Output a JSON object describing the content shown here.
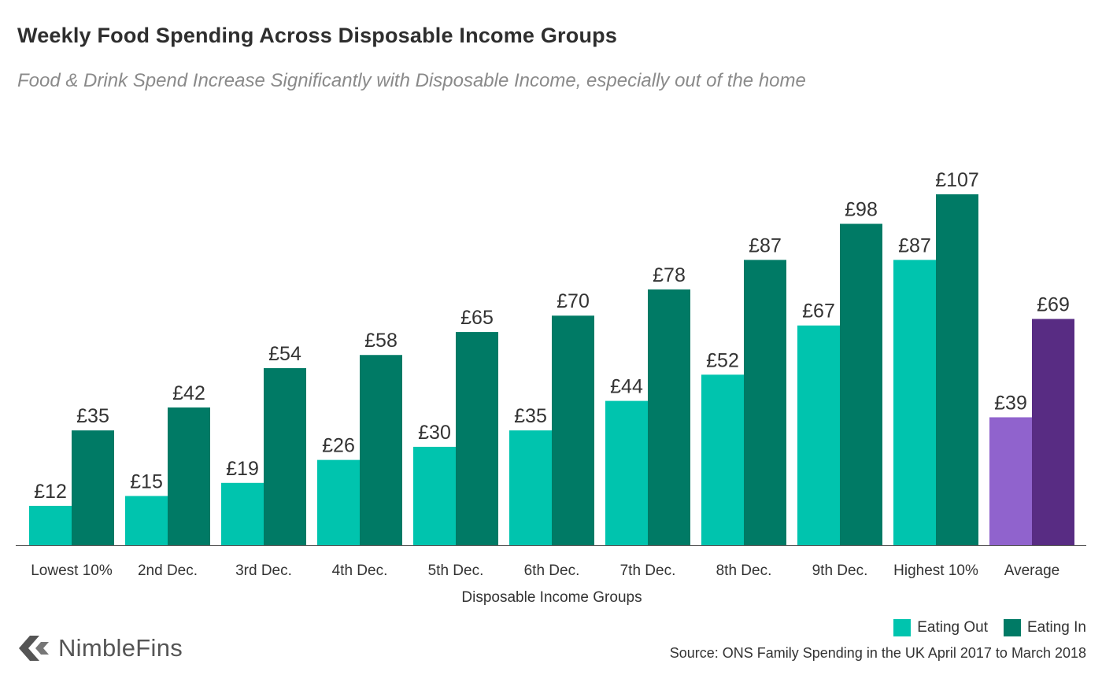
{
  "title": "Weekly Food Spending Across Disposable Income Groups",
  "subtitle": "Food & Drink Spend Increase Significantly with Disposable Income, especially out of the home",
  "source": "Source: ONS Family Spending in the UK April 2017 to March 2018",
  "brand": "NimbleFins",
  "logo_icon": "nimblefins-arrow-icon",
  "colors": {
    "eating_out": "#00c4ae",
    "eating_in": "#007a65",
    "average_out": "#9063cd",
    "average_in": "#582c83",
    "axis": "#555555"
  },
  "legend": [
    {
      "label": "Eating Out",
      "color": "#00c4ae"
    },
    {
      "label": "Eating In",
      "color": "#007a65"
    }
  ],
  "chart_data": {
    "type": "bar",
    "title": "Weekly Food Spending Across Disposable Income Groups",
    "xlabel": "Disposable Income Groups",
    "ylabel": "",
    "ylim": [
      0,
      107
    ],
    "value_prefix": "£",
    "categories": [
      "Lowest 10%",
      "2nd Dec.",
      "3rd Dec.",
      "4th Dec.",
      "5th Dec.",
      "6th Dec.",
      "7th Dec.",
      "8th Dec.",
      "9th Dec.",
      "Highest 10%",
      "Average"
    ],
    "series": [
      {
        "name": "Eating Out",
        "values": [
          12,
          15,
          19,
          26,
          30,
          35,
          44,
          52,
          67,
          87,
          39
        ]
      },
      {
        "name": "Eating In",
        "values": [
          35,
          42,
          54,
          58,
          65,
          70,
          78,
          87,
          98,
          107,
          69
        ]
      }
    ],
    "grid": false,
    "legend_position": "bottom-right",
    "data_labels": true
  }
}
